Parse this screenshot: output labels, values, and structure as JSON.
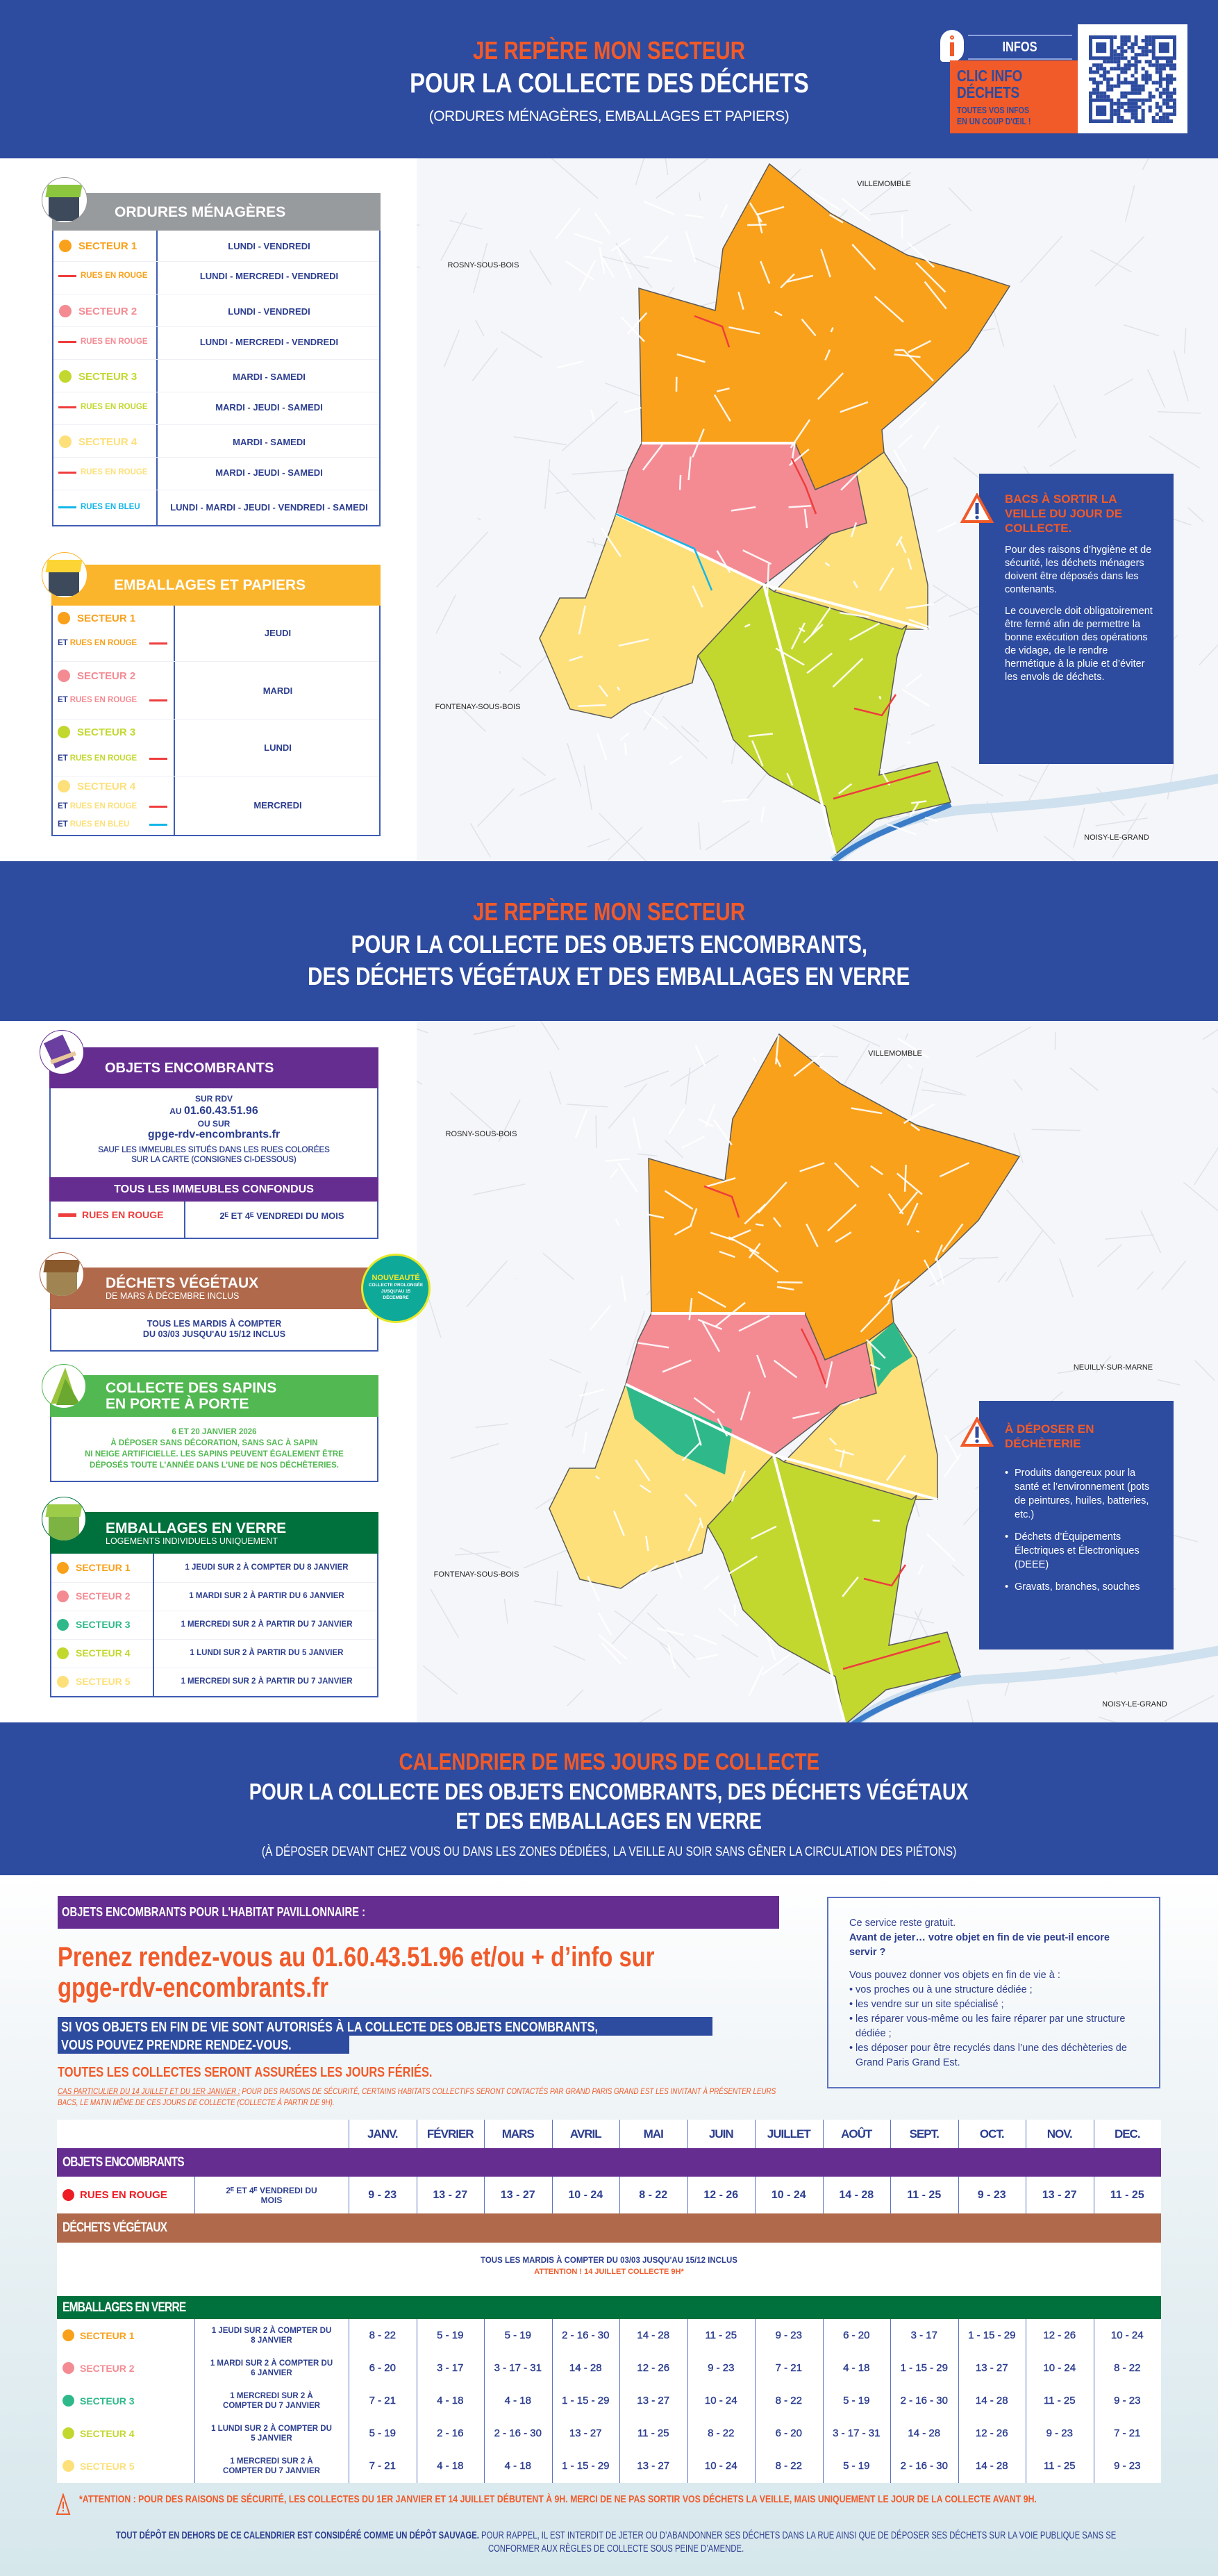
{
  "colors": {
    "brand_blue": "#2d4b9f",
    "accent_orange": "#f15a29",
    "sector1": "#f9a11b",
    "sector2": "#f48b93",
    "sector3": "#c3d82f",
    "sector4": "#fde07a",
    "verre_sector3": "#2fb98a",
    "red_streets": "#ee3d3d",
    "blue_streets": "#14b6e8",
    "ordures": "#989b9e",
    "emballages": "#fbb52c",
    "encombrants": "#662d91",
    "vegetaux": "#b0694b",
    "sapins": "#52b852",
    "verre": "#00703c"
  },
  "header1": {
    "kicker": "JE REPÈRE MON SECTEUR",
    "title": "POUR LA COLLECTE DES DÉCHETS",
    "subtitle": "(ORDURES MÉNAGÈRES, EMBALLAGES ET PAPIERS)"
  },
  "info": {
    "label": "INFOS",
    "title_line1": "CLIC INFO",
    "title_line2": "DÉCHETS",
    "tagline_line1": "TOUTES VOS INFOS",
    "tagline_line2": "EN UN COUP D'ŒIL !",
    "icon": "info-icon",
    "qr": "qr-code"
  },
  "ordures": {
    "title": "ORDURES MÉNAGÈRES",
    "rows": [
      {
        "label": "SECTEUR 1",
        "kind": "dot",
        "color": "#f9a11b",
        "days": "LUNDI - VENDREDI"
      },
      {
        "label": "RUES EN ROUGE",
        "kind": "line",
        "line_color": "#ee3d3d",
        "color": "#f9a11b",
        "days": "LUNDI - MERCREDI - VENDREDI"
      },
      {
        "label": "SECTEUR 2",
        "kind": "dot",
        "color": "#f48b93",
        "days": "LUNDI - VENDREDI"
      },
      {
        "label": "RUES EN ROUGE",
        "kind": "line",
        "line_color": "#ee3d3d",
        "color": "#f48b93",
        "days": "LUNDI - MERCREDI - VENDREDI"
      },
      {
        "label": "SECTEUR 3",
        "kind": "dot",
        "color": "#c3d82f",
        "days": "MARDI - SAMEDI"
      },
      {
        "label": "RUES EN ROUGE",
        "kind": "line",
        "line_color": "#ee3d3d",
        "color": "#c3d82f",
        "days": "MARDI - JEUDI - SAMEDI"
      },
      {
        "label": "SECTEUR 4",
        "kind": "dot",
        "color": "#fde07a",
        "days": "MARDI - SAMEDI"
      },
      {
        "label": "RUES EN ROUGE",
        "kind": "line",
        "line_color": "#ee3d3d",
        "color": "#fde07a",
        "days": "MARDI - JEUDI - SAMEDI"
      },
      {
        "label": "RUES EN BLEU",
        "kind": "line",
        "line_color": "#14b6e8",
        "color": "#14b6e8",
        "days": "LUNDI - MARDI - JEUDI - VENDREDI - SAMEDI"
      }
    ]
  },
  "emballages": {
    "title": "EMBALLAGES ET PAPIERS",
    "rows": [
      {
        "label": "SECTEUR 1",
        "kind": "dot",
        "color": "#f9a11b"
      },
      {
        "prefix": "ET",
        "label": "RUES EN ROUGE",
        "kind": "line",
        "line_color": "#ee3d3d",
        "color": "#f9a11b"
      },
      {
        "label": "SECTEUR 2",
        "kind": "dot",
        "color": "#f48b93"
      },
      {
        "prefix": "ET",
        "label": "RUES EN ROUGE",
        "kind": "line",
        "line_color": "#ee3d3d",
        "color": "#f48b93"
      },
      {
        "label": "SECTEUR 3",
        "kind": "dot",
        "color": "#c3d82f"
      },
      {
        "prefix": "ET",
        "label": "RUES EN ROUGE",
        "kind": "line",
        "line_color": "#ee3d3d",
        "color": "#c3d82f"
      },
      {
        "label": "SECTEUR 4",
        "kind": "dot",
        "color": "#fde07a"
      },
      {
        "prefix": "ET",
        "label": "RUES EN ROUGE",
        "kind": "line",
        "line_color": "#ee3d3d",
        "color": "#fde07a"
      },
      {
        "prefix": "ET",
        "label": "RUES EN BLEU",
        "kind": "line",
        "line_color": "#14b6e8",
        "color": "#fde07a"
      }
    ],
    "days": [
      "JEUDI",
      "MARDI",
      "LUNDI",
      "MERCREDI"
    ]
  },
  "map1": {
    "cities": [
      "VILLEMOMBLE",
      "ROSNY-SOUS-BOIS",
      "FONTENAY-SOUS-BOIS",
      "NOISY-LE-GRAND"
    ]
  },
  "bacs": {
    "title": "BACS À SORTIR LA VEILLE DU JOUR DE COLLECTE.",
    "p1": "Pour des raisons d’hygiène et de sécurité, les déchets ménagers doivent être déposés dans les contenants.",
    "p2": "Le couvercle doit obligatoirement être fermé afin de permettre la bonne exécution des opérations de vidage, de le rendre hermétique à la pluie et d’éviter les envols de déchets."
  },
  "header2": {
    "kicker": "JE REPÈRE MON SECTEUR",
    "line1": "POUR LA COLLECTE DES OBJETS ENCOMBRANTS,",
    "line2": "DES DÉCHETS VÉGÉTAUX ET DES EMBALLAGES EN VERRE"
  },
  "encombrants": {
    "title": "OBJETS ENCOMBRANTS",
    "l1": "SUR RDV",
    "l2_prefix": "AU",
    "phone": "01.60.43.51.96",
    "l3": "OU SUR",
    "url": "gpge-rdv-encombrants.fr",
    "l4": "SAUF LES IMMEUBLES SITUÉS DANS LES RUES COLORÉES",
    "l5": "SUR LA CARTE (CONSIGNES CI-DESSOUS)",
    "subheader": "TOUS LES IMMEUBLES CONFONDUS",
    "row_label": "RUES EN ROUGE",
    "row_value": "2ᴱ ET 4ᴱ VENDREDI DU MOIS"
  },
  "vegetaux": {
    "title": "DÉCHETS VÉGÉTAUX",
    "subtitle": "DE MARS À DÉCEMBRE INCLUS",
    "l1": "TOUS LES MARDIS À COMPTER",
    "l2": "DU 03/03 JUSQU'AU 15/12 INCLUS"
  },
  "badge": {
    "title": "NOUVEAUTÉ",
    "l1": "COLLECTE PROLONGÉE",
    "l2": "JUSQU'AU 15",
    "l3": "DÉCEMBRE"
  },
  "sapins": {
    "title1": "COLLECTE DES SAPINS",
    "title2": "EN PORTE À PORTE",
    "l1": "6 ET 20 JANVIER 2026",
    "l2": "À DÉPOSER SANS DÉCORATION, SANS SAC À SAPIN",
    "l3": "NI NEIGE ARTIFICIELLE. LES SAPINS PEUVENT ÉGALEMENT ÊTRE",
    "l4": "DÉPOSÉS TOUTE L’ANNÉE DANS L’UNE DE NOS DÉCHÈTERIES."
  },
  "verre": {
    "title": "EMBALLAGES EN VERRE",
    "subtitle": "LOGEMENTS INDIVIDUELS UNIQUEMENT",
    "rows": [
      {
        "label": "SECTEUR 1",
        "color": "#f9a11b",
        "value": "1 JEUDI SUR 2 À COMPTER DU 8 JANVIER"
      },
      {
        "label": "SECTEUR 2",
        "color": "#f48b93",
        "value": "1 MARDI SUR 2 À PARTIR DU 6 JANVIER"
      },
      {
        "label": "SECTEUR 3",
        "color": "#2fb98a",
        "value": "1 MERCREDI SUR 2 À PARTIR DU 7 JANVIER"
      },
      {
        "label": "SECTEUR 4",
        "color": "#c3d82f",
        "value": "1 LUNDI SUR 2 À PARTIR DU 5 JANVIER"
      },
      {
        "label": "SECTEUR 5",
        "color": "#fde07a",
        "value": "1 MERCREDI SUR 2 À PARTIR DU 7 JANVIER"
      }
    ]
  },
  "decheterie": {
    "title": "À DÉPOSER EN DÉCHÈTERIE",
    "items": [
      "Produits dangereux pour la santé et l’environnement (pots de peintures, huiles, batteries, etc.)",
      "Déchets d’Équipements Électriques et Électroniques (DEEE)",
      "Gravats, branches, souches"
    ]
  },
  "map2": {
    "cities": [
      "VILLEMOMBLE",
      "ROSNY-SOUS-BOIS",
      "NEUILLY-SUR-MARNE",
      "FONTENAY-SOUS-BOIS",
      "NOISY-LE-GRAND"
    ]
  },
  "header3": {
    "kicker": "CALENDRIER DE MES JOURS DE COLLECTE",
    "line1": "POUR LA COLLECTE DES OBJETS ENCOMBRANTS, DES DÉCHETS VÉGÉTAUX",
    "line2": "ET DES EMBALLAGES EN VERRE",
    "subtitle": "(À DÉPOSER DEVANT CHEZ VOUS OU DANS LES ZONES DÉDIÉES, LA VEILLE AU SOIR SANS GÊNER LA CIRCULATION DES PIÉTONS)"
  },
  "pavillonnaire": {
    "bar": "OBJETS ENCOMBRANTS POUR L'HABITAT PAVILLONNAIRE :",
    "cta1": "Prenez rendez-vous au 01.60.43.51.96 et/ou + d’info sur",
    "cta2": "gpge-rdv-encombrants.fr",
    "note1": "SI VOS OBJETS EN FIN DE VIE SONT AUTORISÉS À LA COLLECTE DES OBJETS ENCOMBRANTS,",
    "note2": "VOUS POUVEZ PRENDRE RENDEZ-VOUS.",
    "feries": "TOUTES LES COLLECTES SERONT ASSURÉES LES JOURS FÉRIÉS.",
    "cas_label": "CAS PARTICULIER DU 14 JUILLET ET DU 1ER JANVIER :",
    "cas_text": " POUR DES RAISONS DE SÉCURITÉ, CERTAINS HABITATS COLLECTIFS SERONT CONTACTÉS PAR GRAND PARIS GRAND EST LES INVITANT À PRÉSENTER LEURS BACS, LE MATIN MÊME DE CES JOURS DE COLLECTE (COLLECTE À PARTIR DE 9H)."
  },
  "reuse": {
    "l1": "Ce service reste gratuit.",
    "l2": "Avant de jeter… votre objet en fin de vie peut-il encore servir ?",
    "l3": "Vous pouvez donner vos objets en fin de vie à :",
    "items": [
      "vos proches ou à une structure dédiée ;",
      "les vendre sur un site spécialisé ;",
      "les réparer vous-même ou les faire réparer par une structure dédiée ;",
      "les déposer pour être recyclés dans l’une des déchèteries de Grand Paris Grand Est."
    ]
  },
  "calendar": {
    "months": [
      "JANV.",
      "FÉVRIER",
      "MARS",
      "AVRIL",
      "MAI",
      "JUIN",
      "JUILLET",
      "AOÛT",
      "SEPT.",
      "OCT.",
      "NOV.",
      "DEC."
    ],
    "encombrants": {
      "title": "OBJETS ENCOMBRANTS",
      "label": "RUES EN ROUGE",
      "desc": "2ᴱ ET 4ᴱ VENDREDI DU MOIS",
      "values": [
        "9 - 23",
        "13 - 27",
        "13 - 27",
        "10 - 24",
        "8 - 22",
        "12 - 26",
        "10 - 24",
        "14 - 28",
        "11 - 25",
        "9 - 23",
        "13 - 27",
        "11 - 25"
      ]
    },
    "vegetaux": {
      "title": "DÉCHETS VÉGÉTAUX",
      "text": "TOUS LES MARDIS À COMPTER DU 03/03 JUSQU'AU 15/12 INCLUS",
      "attention": "ATTENTION ! 14 JUILLET COLLECTE 9H*"
    },
    "verre": {
      "title": "EMBALLAGES EN VERRE",
      "rows": [
        {
          "label": "SECTEUR 1",
          "color": "#f9a11b",
          "desc": "1 JEUDI SUR 2 À COMPTER DU 8 JANVIER",
          "values": [
            "8 - 22",
            "5 - 19",
            "5 - 19",
            "2 - 16 - 30",
            "14 - 28",
            "11 - 25",
            "9 - 23",
            "6 - 20",
            "3 - 17",
            "1 - 15 - 29",
            "12 - 26",
            "10 - 24"
          ]
        },
        {
          "label": "SECTEUR 2",
          "color": "#f48b93",
          "desc": "1 MARDI SUR 2 À COMPTER DU 6 JANVIER",
          "values": [
            "6 - 20",
            "3 - 17",
            "3 - 17 - 31",
            "14 - 28",
            "12 - 26",
            "9 - 23",
            "7 - 21",
            "4 - 18",
            "1 - 15 - 29",
            "13 - 27",
            "10 - 24",
            "8 - 22"
          ]
        },
        {
          "label": "SECTEUR 3",
          "color": "#2fb98a",
          "desc": "1 MERCREDI SUR 2 À COMPTER DU 7 JANVIER",
          "values": [
            "7 - 21",
            "4 - 18",
            "4 - 18",
            "1 - 15 - 29",
            "13 - 27",
            "10 - 24",
            "8 - 22",
            "5 - 19",
            "2 - 16 - 30",
            "14 - 28",
            "11 - 25",
            "9 - 23"
          ]
        },
        {
          "label": "SECTEUR 4",
          "color": "#c3d82f",
          "desc": "1 LUNDI SUR 2 À COMPTER DU 5 JANVIER",
          "values": [
            "5 - 19",
            "2 - 16",
            "2 - 16 - 30",
            "13 - 27",
            "11 - 25",
            "8 - 22",
            "6 - 20",
            "3 - 17 - 31",
            "14 - 28",
            "12 - 26",
            "9 - 23",
            "7 - 21"
          ]
        },
        {
          "label": "SECTEUR 5",
          "color": "#fde07a",
          "desc": "1 MERCREDI SUR 2 À COMPTER DU 7 JANVIER",
          "values": [
            "7 - 21",
            "4 - 18",
            "4 - 18",
            "1 - 15 - 29",
            "13 - 27",
            "10 - 24",
            "8 - 22",
            "5 - 19",
            "2 - 16 - 30",
            "14 - 28",
            "11 - 25",
            "9 - 23"
          ]
        }
      ]
    }
  },
  "footer": {
    "attention": "*ATTENTION : POUR DES RAISONS DE SÉCURITÉ, LES COLLECTES DU 1ER JANVIER ET 14 JUILLET DÉBUTENT À 9H. MERCI DE NE PAS SORTIR VOS DÉCHETS LA VEILLE, MAIS UNIQUEMENT LE JOUR DE LA COLLECTE AVANT 9H.",
    "bold": "TOUT DÉPÔT EN DEHORS DE CE CALENDRIER EST CONSIDÉRÉ COMME UN DÉPÔT SAUVAGE.",
    "rest": " POUR RAPPEL, IL EST INTERDIT DE JETER OU D’ABANDONNER SES DÉCHETS DANS LA RUE AINSI QUE DE DÉPOSER SES DÉCHETS SUR LA VOIE PUBLIQUE SANS SE CONFORMER AUX RÈGLES DE COLLECTE SOUS PEINE D’AMENDE."
  }
}
